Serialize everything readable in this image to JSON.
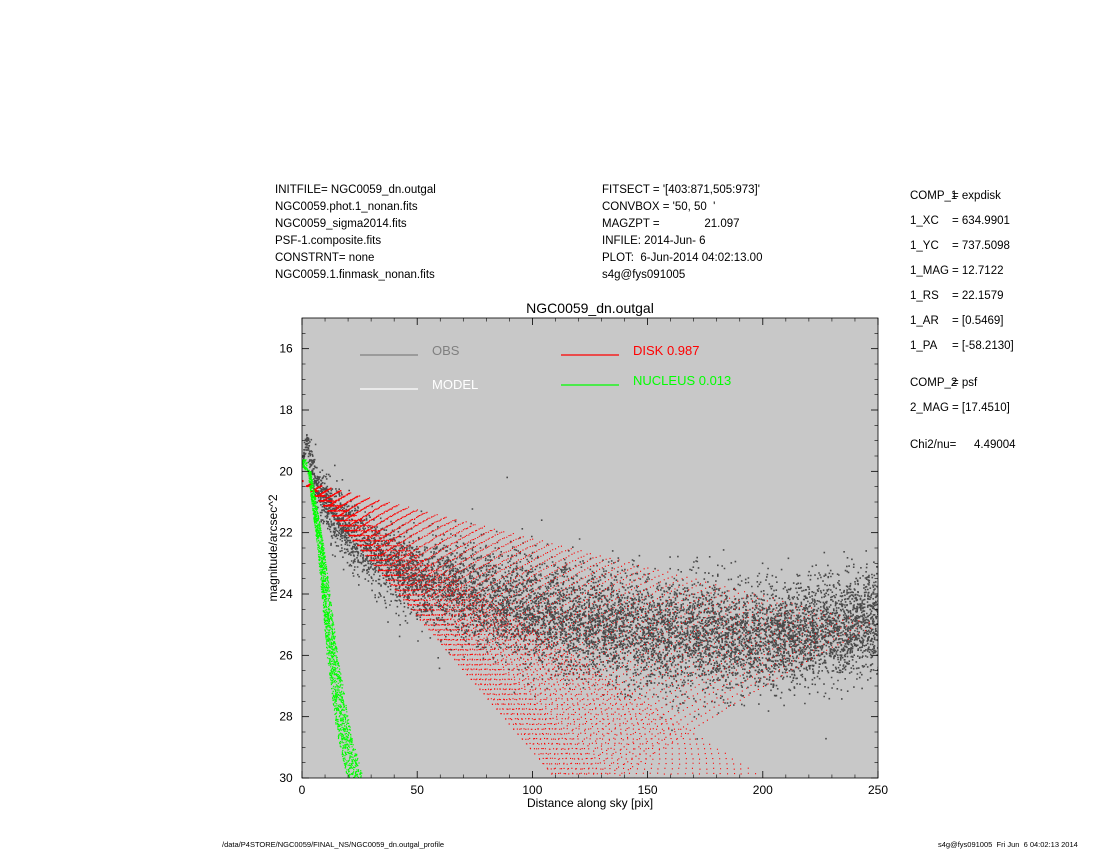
{
  "header_left": [
    "INITFILE= NGC0059_dn.outgal",
    "NGC0059.phot.1_nonan.fits",
    "NGC0059_sigma2014.fits",
    "PSF-1.composite.fits",
    "CONSTRNT= none",
    "NGC0059.1.finmask_nonan.fits"
  ],
  "header_mid": [
    "FITSECT = '[403:871,505:973]'",
    "CONVBOX = '50, 50  '",
    "MAGZPT =              21.097",
    "INFILE: 2014-Jun- 6",
    "PLOT:  6-Jun-2014 04:02:13.00",
    "s4g@fys091005"
  ],
  "components": [
    {
      "label": "COMP_1",
      "value": "= expdisk"
    },
    {
      "label": "1_XC",
      "value": "= 634.9901"
    },
    {
      "label": "1_YC",
      "value": "= 737.5098"
    },
    {
      "label": "1_MAG",
      "value": "= 12.7122"
    },
    {
      "label": "1_RS",
      "value": "= 22.1579"
    },
    {
      "label": "1_AR",
      "value": "= [0.5469]"
    },
    {
      "label": "1_PA",
      "value": "= [-58.2130]"
    },
    {
      "label": "COMP_2",
      "value": "= psf"
    },
    {
      "label": "2_MAG",
      "value": "= [17.4510]"
    },
    {
      "label": "Chi2/nu=",
      "value": "     4.49004"
    }
  ],
  "footer": {
    "left": "/data/P4STORE/NGC0059/FINAL_NS/NGC0059_dn.outgal_profile",
    "right": "s4g@fys091005  Fri Jun  6 04:02:13 2014"
  },
  "chart_data": {
    "type": "scatter",
    "title": "NGC0059_dn.outgal",
    "xlabel": "Distance along sky [pix]",
    "ylabel": "magnitude/arcsec^2",
    "xlim": [
      0,
      250
    ],
    "ylim": [
      30,
      15
    ],
    "y_inverted": true,
    "xticks": [
      0,
      50,
      100,
      150,
      200,
      250
    ],
    "yticks": [
      16,
      18,
      20,
      22,
      24,
      26,
      28,
      30
    ],
    "background_color": "#c8c8c8",
    "legend": [
      {
        "label": "OBS",
        "color": "#808080"
      },
      {
        "label": "MODEL",
        "color": "#ffffff"
      },
      {
        "label": "DISK  0.987",
        "color": "#ff0000"
      },
      {
        "label": "NUCLEUS  0.013",
        "color": "#00ff00"
      }
    ],
    "series": [
      {
        "name": "OBS",
        "color": "#4a4a4a",
        "description_points": [
          [
            0,
            19.6
          ],
          [
            2,
            19.0
          ],
          [
            5,
            20.2
          ],
          [
            10,
            21.0
          ],
          [
            20,
            22.0
          ],
          [
            30,
            22.6
          ],
          [
            50,
            23.5
          ],
          [
            75,
            24.0
          ],
          [
            100,
            24.5
          ],
          [
            125,
            24.9
          ],
          [
            150,
            25.2
          ],
          [
            175,
            25.4
          ],
          [
            200,
            25.4
          ],
          [
            225,
            25.2
          ],
          [
            235,
            25.0
          ],
          [
            250,
            24.8
          ]
        ],
        "spread_mag": [
          0.2,
          0.4,
          0.6,
          0.8,
          1.0,
          1.1,
          1.3,
          1.5,
          1.6,
          1.6,
          1.6,
          1.6,
          1.5,
          1.5,
          1.5,
          1.5
        ]
      },
      {
        "name": "DISK",
        "color": "#ff0000",
        "fan": {
          "x0": 0,
          "y0": 20.3,
          "upper_end": [
            250,
            25.0
          ],
          "lower_end": [
            110,
            30
          ],
          "lower_end2": [
            200,
            30
          ]
        }
      },
      {
        "name": "NUCLEUS",
        "color": "#00ff00",
        "band": [
          [
            0,
            19.8
          ],
          [
            3,
            20.0
          ],
          [
            8,
            22.5
          ],
          [
            13,
            26.0
          ],
          [
            18,
            28.5
          ],
          [
            23,
            30
          ]
        ]
      }
    ]
  }
}
